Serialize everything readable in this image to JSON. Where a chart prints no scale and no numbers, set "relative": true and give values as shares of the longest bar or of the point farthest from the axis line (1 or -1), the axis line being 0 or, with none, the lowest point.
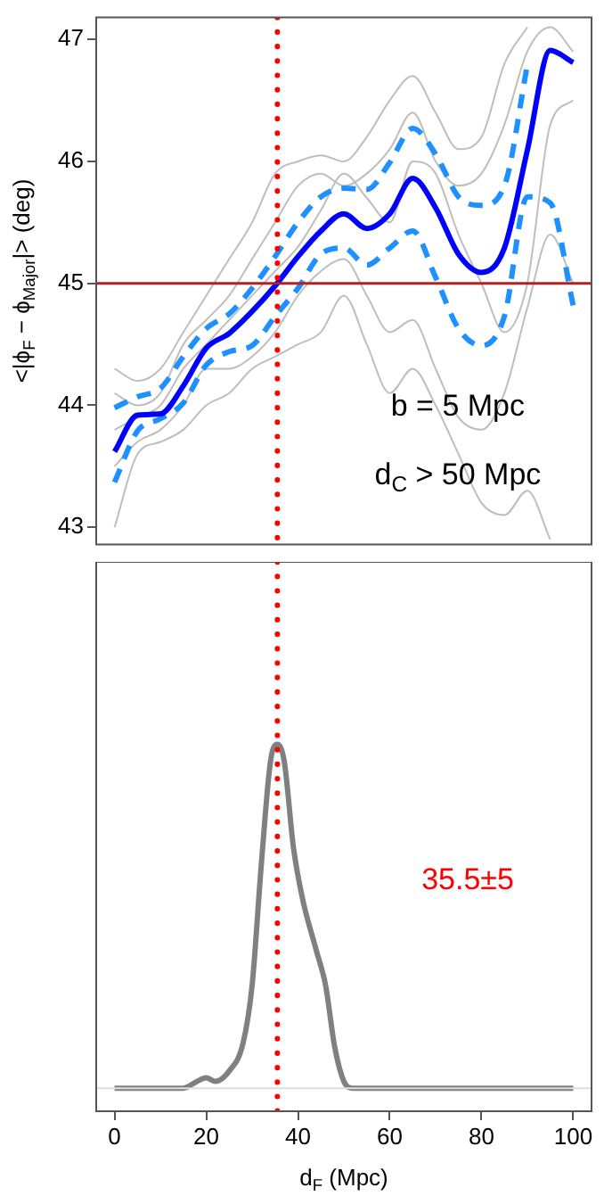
{
  "chart_data": [
    {
      "type": "line",
      "ylabel": "<|ϕ$_{F}$ − ϕ$_{Major}$|> (deg)",
      "xlim": [
        -4,
        104
      ],
      "xticks": [
        0,
        20,
        40,
        60,
        80,
        100
      ],
      "ylim": [
        42.86,
        47.18
      ],
      "yticks": [
        43,
        44,
        45,
        46,
        47
      ],
      "tick_labels": "y",
      "x": [
        0,
        5,
        10,
        15,
        20,
        25,
        30,
        35,
        40,
        45,
        50,
        55,
        60,
        65,
        70,
        75,
        80,
        85,
        90,
        95,
        100
      ],
      "series": [
        {
          "color": "#bebebe",
          "values": [
            44.3,
            44.2,
            44.3,
            44.6,
            44.9,
            45.2,
            45.5,
            45.9,
            46.0,
            46.05,
            46.0,
            46.2,
            46.5,
            46.7,
            46.4,
            46.1,
            46.2,
            46.8,
            47.1,
            null,
            null
          ]
        },
        {
          "color": "#bebebe",
          "values": [
            43.0,
            43.6,
            43.7,
            43.8,
            44.0,
            44.1,
            44.3,
            44.4,
            44.5,
            44.6,
            44.9,
            44.5,
            44.1,
            44.3,
            44.0,
            43.6,
            43.2,
            43.1,
            43.3,
            42.9,
            null
          ]
        },
        {
          "color": "#bebebe",
          "values": [
            44.1,
            44.0,
            44.1,
            44.5,
            44.7,
            44.9,
            45.2,
            45.5,
            45.8,
            45.9,
            45.8,
            45.9,
            46.1,
            46.4,
            46.0,
            45.8,
            45.9,
            46.3,
            46.9,
            47.1,
            46.9
          ]
        },
        {
          "color": "#bebebe",
          "values": [
            43.5,
            43.7,
            43.8,
            44.0,
            44.3,
            44.3,
            44.4,
            44.6,
            44.9,
            45.1,
            45.2,
            44.9,
            44.6,
            44.7,
            44.3,
            43.9,
            43.8,
            44.1,
            44.8,
            45.4,
            45.0
          ]
        },
        {
          "color": "#bebebe",
          "values": [
            43.8,
            43.9,
            44.0,
            44.3,
            44.5,
            44.7,
            44.9,
            45.1,
            45.3,
            45.6,
            45.9,
            45.7,
            45.5,
            46.0,
            45.9,
            45.4,
            45.0,
            44.6,
            45.0,
            46.3,
            46.5
          ]
        },
        {
          "color": "#1e90ff",
          "line_style": "dashed",
          "values": [
            43.98,
            44.07,
            44.14,
            44.4,
            44.63,
            44.75,
            44.96,
            45.22,
            45.5,
            45.71,
            45.78,
            45.77,
            45.99,
            46.27,
            46.06,
            45.71,
            45.64,
            45.8,
            46.79,
            null,
            null
          ]
        },
        {
          "color": "#1e90ff",
          "line_style": "dashed",
          "values": [
            43.37,
            43.79,
            43.89,
            44.02,
            44.33,
            44.44,
            44.49,
            44.73,
            44.96,
            45.24,
            45.29,
            45.15,
            45.29,
            45.43,
            45.05,
            44.63,
            44.49,
            44.73,
            45.71,
            45.66,
            44.82
          ]
        },
        {
          "color": "#0000ff",
          "values": [
            43.62,
            43.92,
            43.93,
            44.16,
            44.47,
            44.59,
            44.77,
            44.98,
            45.22,
            45.43,
            45.57,
            45.45,
            45.57,
            45.86,
            45.62,
            45.24,
            45.09,
            45.29,
            46.09,
            46.91,
            46.81
          ]
        }
      ],
      "ref_lines": [
        {
          "axis": "y",
          "value": 45,
          "color": "#b22222",
          "line_style": "solid"
        },
        {
          "axis": "x",
          "value": 35.5,
          "color": "#ff0000",
          "line_style": "dotted"
        }
      ],
      "annotations": [
        "b = 5 Mpc",
        "d$_{C}$ > 50 Mpc"
      ]
    },
    {
      "type": "line",
      "xlabel": "d$_{F}$ (Mpc)",
      "relative": true,
      "xlim": [
        -4,
        104
      ],
      "xticks": [
        0,
        20,
        40,
        60,
        80,
        100
      ],
      "tick_labels": "x",
      "x": [
        0,
        15,
        18,
        20,
        22,
        25,
        28,
        30,
        32,
        34,
        35.5,
        37,
        39,
        41,
        44,
        46,
        48,
        50,
        52,
        100
      ],
      "series": [
        {
          "color": "#808080",
          "values": [
            0,
            0,
            0.02,
            0.03,
            0.02,
            0.05,
            0.13,
            0.3,
            0.65,
            0.95,
            1,
            0.95,
            0.7,
            0.55,
            0.4,
            0.3,
            0.12,
            0.02,
            0,
            0
          ]
        }
      ],
      "ref_lines": [
        {
          "axis": "x",
          "value": 35.5,
          "color": "#ff0000",
          "line_style": "dotted"
        }
      ],
      "annotations": [
        "35.5±5"
      ]
    }
  ]
}
